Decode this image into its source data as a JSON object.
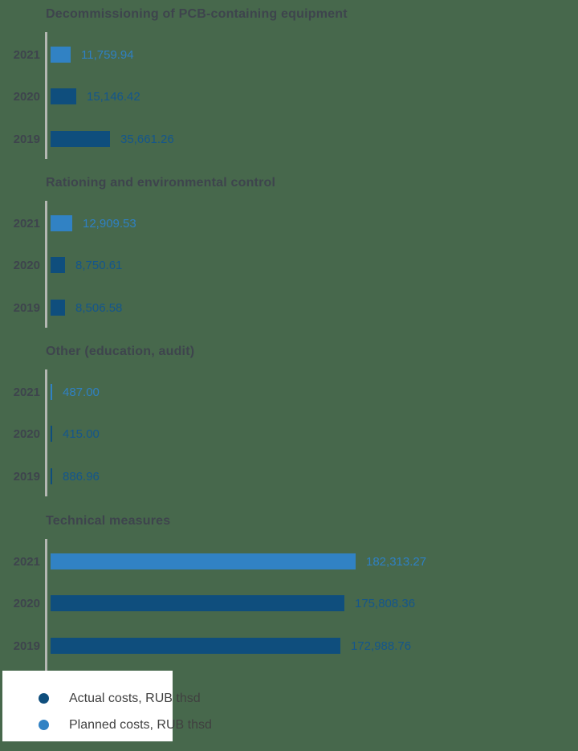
{
  "colors": {
    "background": "#47684C",
    "actual_bar": "#0F4E7D",
    "planned_bar": "#3182C4",
    "actual_value_text": "#14568C",
    "planned_value_text": "#2F80C3",
    "axis_line": "#B4B7B2",
    "heading_text": "#3E444D",
    "legend_text": "#404040",
    "legend_panel": "#FFFFFF"
  },
  "legend": {
    "items": [
      {
        "label": "Actual costs, RUB thsd",
        "color": "#0F4E7D",
        "series": "actual"
      },
      {
        "label": "Planned costs, RUB thsd",
        "color": "#3182C4",
        "series": "planned"
      }
    ]
  },
  "chart_data": {
    "type": "bar",
    "orientation": "horizontal",
    "unit": "RUB thsd",
    "categories": [
      "2021",
      "2020",
      "2019"
    ],
    "xlim": [
      0,
      182313.27
    ],
    "grid": false,
    "legend_position": "bottom-left",
    "series_names": [
      "Actual costs, RUB thsd",
      "Planned costs, RUB thsd"
    ],
    "groups": [
      {
        "title": "Decommissioning of PCB-containing equipment",
        "bars": [
          {
            "year": "2021",
            "series": "Planned costs, RUB thsd",
            "value": 11759.94,
            "label": "11,759.94"
          },
          {
            "year": "2020",
            "series": "Actual costs, RUB thsd",
            "value": 15146.42,
            "label": "15,146.42"
          },
          {
            "year": "2019",
            "series": "Actual costs, RUB thsd",
            "value": 35661.26,
            "label": "35,661.26"
          }
        ]
      },
      {
        "title": "Rationing and environmental control",
        "bars": [
          {
            "year": "2021",
            "series": "Planned costs, RUB thsd",
            "value": 12909.53,
            "label": "12,909.53"
          },
          {
            "year": "2020",
            "series": "Actual costs, RUB thsd",
            "value": 8750.61,
            "label": "8,750.61"
          },
          {
            "year": "2019",
            "series": "Actual costs, RUB thsd",
            "value": 8506.58,
            "label": "8,506.58"
          }
        ]
      },
      {
        "title": "Other (education, audit)",
        "bars": [
          {
            "year": "2021",
            "series": "Planned costs, RUB thsd",
            "value": 487.0,
            "label": "487.00"
          },
          {
            "year": "2020",
            "series": "Actual costs, RUB thsd",
            "value": 415.0,
            "label": "415.00"
          },
          {
            "year": "2019",
            "series": "Actual costs, RUB thsd",
            "value": 886.96,
            "label": "886.96"
          }
        ]
      },
      {
        "title": "Technical measures",
        "bars": [
          {
            "year": "2021",
            "series": "Planned costs, RUB thsd",
            "value": 182313.27,
            "label": "182,313.27"
          },
          {
            "year": "2020",
            "series": "Actual costs, RUB thsd",
            "value": 175808.36,
            "label": "175,808.36"
          },
          {
            "year": "2019",
            "series": "Actual costs, RUB thsd",
            "value": 172988.76,
            "label": "172,988.76"
          }
        ]
      }
    ]
  }
}
